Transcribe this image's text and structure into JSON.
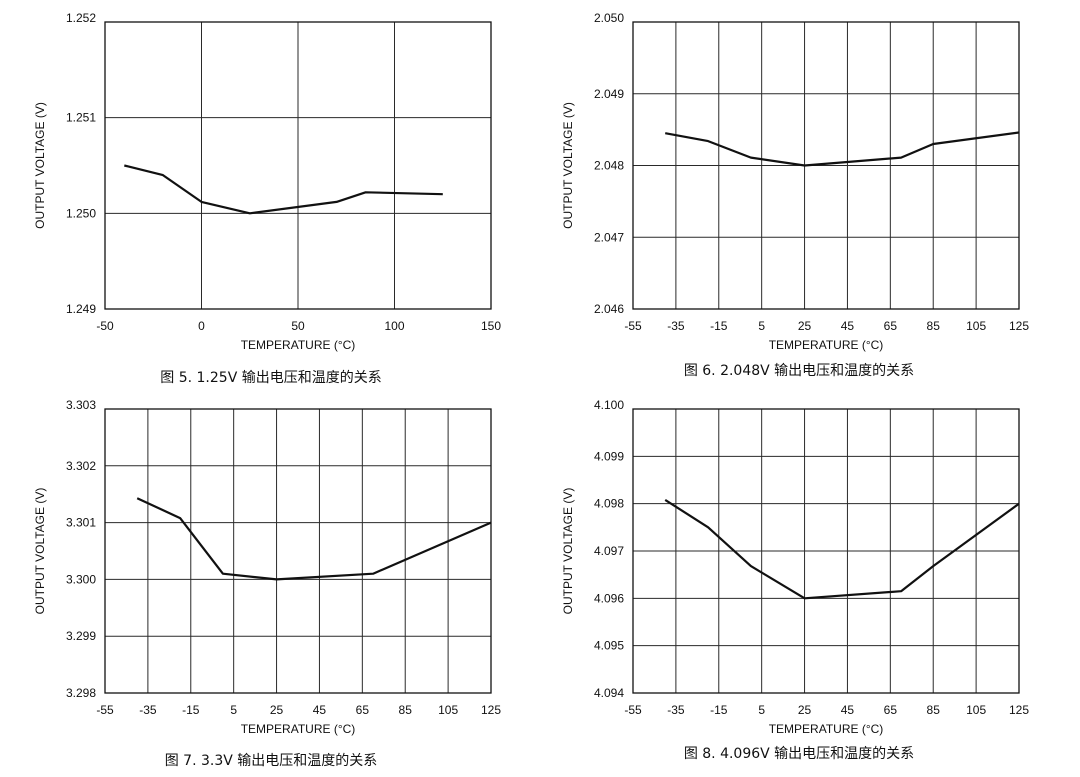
{
  "chart_data": [
    {
      "type": "line",
      "caption": "图 5. 1.25V 输出电压和温度的关系",
      "xlabel": "TEMPERATURE (°C)",
      "ylabel": "OUTPUT VOLTAGE (V)",
      "xlim": [
        -50,
        150
      ],
      "ylim": [
        1.249,
        1.252
      ],
      "xticks": [
        -50,
        0,
        50,
        100,
        150
      ],
      "xtick_labels": [
        "-50",
        "0",
        "50",
        "100",
        "150"
      ],
      "yticks": [
        1.249,
        1.25,
        1.251,
        1.252
      ],
      "ytick_labels": [
        "1.249",
        "1.250",
        "1.251",
        "1.252"
      ],
      "xgrid": [
        0,
        50,
        100
      ],
      "series": [
        {
          "name": "1.25V",
          "x": [
            -40,
            -20,
            0,
            25,
            70,
            85,
            125
          ],
          "y": [
            1.2505,
            1.2504,
            1.25012,
            1.25,
            1.25012,
            1.25022,
            1.2502
          ]
        }
      ]
    },
    {
      "type": "line",
      "caption": "图 6. 2.048V 输出电压和温度的关系",
      "xlabel": "TEMPERATURE (°C)",
      "ylabel": "OUTPUT VOLTAGE (V)",
      "xlim": [
        -55,
        125
      ],
      "ylim": [
        2.046,
        2.05
      ],
      "xticks": [
        -55,
        -35,
        -15,
        5,
        25,
        45,
        65,
        85,
        105,
        125
      ],
      "xtick_labels": [
        "-55",
        "-35",
        "-15",
        "5",
        "25",
        "45",
        "65",
        "85",
        "105",
        "125"
      ],
      "yticks": [
        2.046,
        2.047,
        2.048,
        2.049,
        2.05
      ],
      "ytick_labels": [
        "2.046",
        "2.047",
        "2.048",
        "2.049",
        "2.050"
      ],
      "xgrid": [
        -35,
        -15,
        5,
        25,
        45,
        65,
        85,
        105
      ],
      "series": [
        {
          "name": "2.048V",
          "x": [
            -40,
            -20,
            0,
            25,
            70,
            85,
            125
          ],
          "y": [
            2.04845,
            2.04834,
            2.04811,
            2.048,
            2.04811,
            2.0483,
            2.04846
          ]
        }
      ]
    },
    {
      "type": "line",
      "caption": "图 7. 3.3V 输出电压和温度的关系",
      "xlabel": "TEMPERATURE (°C)",
      "ylabel": "OUTPUT VOLTAGE (V)",
      "xlim": [
        -55,
        125
      ],
      "ylim": [
        3.298,
        3.303
      ],
      "xticks": [
        -55,
        -35,
        -15,
        5,
        25,
        45,
        65,
        85,
        105,
        125
      ],
      "xtick_labels": [
        "-55",
        "-35",
        "-15",
        "5",
        "25",
        "45",
        "65",
        "85",
        "105",
        "125"
      ],
      "yticks": [
        3.298,
        3.299,
        3.3,
        3.301,
        3.302,
        3.303
      ],
      "ytick_labels": [
        "3.298",
        "3.299",
        "3.300",
        "3.301",
        "3.302",
        "3.303"
      ],
      "xgrid": [
        -35,
        -15,
        5,
        25,
        45,
        65,
        85,
        105
      ],
      "series": [
        {
          "name": "3.3V",
          "x": [
            -40,
            -20,
            0,
            25,
            70,
            125
          ],
          "y": [
            3.30143,
            3.30108,
            3.3001,
            3.3,
            3.3001,
            3.301
          ]
        }
      ]
    },
    {
      "type": "line",
      "caption": "图 8. 4.096V 输出电压和温度的关系",
      "xlabel": "TEMPERATURE (°C)",
      "ylabel": "OUTPUT VOLTAGE (V)",
      "xlim": [
        -55,
        125
      ],
      "ylim": [
        4.094,
        4.1
      ],
      "xticks": [
        -55,
        -35,
        -15,
        5,
        25,
        45,
        65,
        85,
        105,
        125
      ],
      "xtick_labels": [
        "-55",
        "-35",
        "-15",
        "5",
        "25",
        "45",
        "65",
        "85",
        "105",
        "125"
      ],
      "yticks": [
        4.094,
        4.095,
        4.096,
        4.097,
        4.098,
        4.099,
        4.1
      ],
      "ytick_labels": [
        "4.094",
        "4.095",
        "4.096",
        "4.097",
        "4.098",
        "4.099",
        "4.100"
      ],
      "xgrid": [
        -35,
        -15,
        5,
        25,
        45,
        65,
        85,
        105
      ],
      "series": [
        {
          "name": "4.096V",
          "x": [
            -40,
            -20,
            0,
            25,
            70,
            85,
            125
          ],
          "y": [
            4.09808,
            4.0975,
            4.09668,
            4.096,
            4.09615,
            4.09668,
            4.098
          ]
        }
      ]
    }
  ]
}
